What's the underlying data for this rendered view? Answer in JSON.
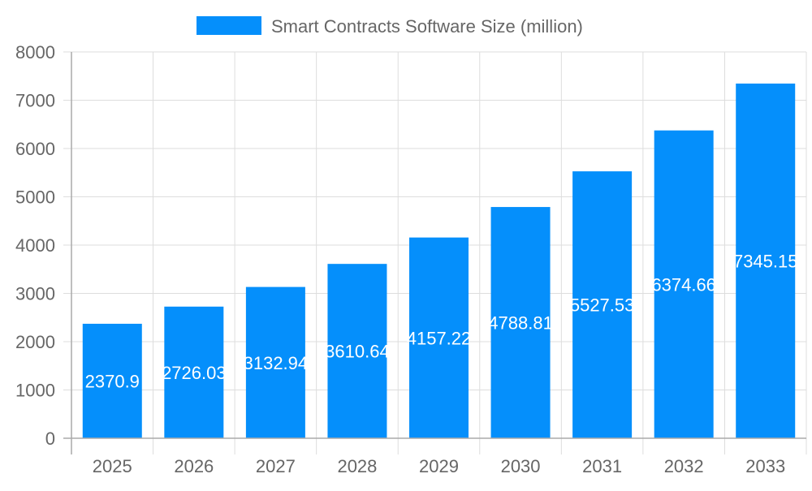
{
  "chart_data": {
    "type": "bar",
    "title": "",
    "xlabel": "",
    "ylabel": "",
    "legend": {
      "position": "top",
      "entries": [
        "Smart Contracts Software Size (million)"
      ]
    },
    "categories": [
      "2025",
      "2026",
      "2027",
      "2028",
      "2029",
      "2030",
      "2031",
      "2032",
      "2033"
    ],
    "series": [
      {
        "name": "Smart Contracts Software Size (million)",
        "color": "#058ffb",
        "values": [
          2370.9,
          2726.03,
          3132.94,
          3610.64,
          4157.22,
          4788.81,
          5527.53,
          6374.66,
          7345.15
        ]
      }
    ],
    "ylim": [
      0,
      8000
    ],
    "yticks": [
      "0",
      "1000",
      "2000",
      "3000",
      "4000",
      "5000",
      "6000",
      "7000",
      "8000"
    ],
    "grid": true,
    "data_labels": true
  }
}
